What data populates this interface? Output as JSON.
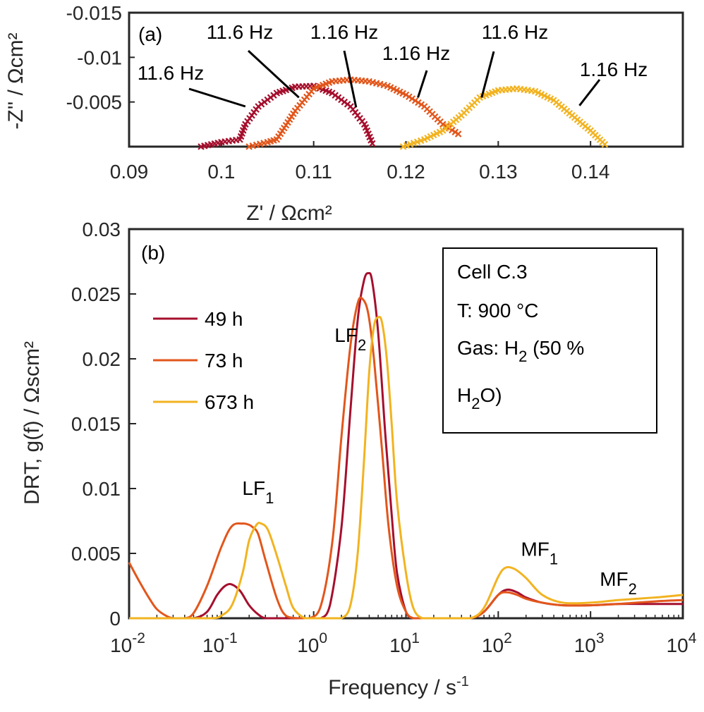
{
  "chart_data": [
    {
      "panel_label": "(a)",
      "type": "scatter",
      "marker": "x",
      "xlabel": "Z' / Ωcm²",
      "ylabel": "-Z'' / Ωcm²",
      "xlim": [
        0.09,
        0.15
      ],
      "ylim": [
        0,
        -0.015
      ],
      "x_ticks": [
        "0.09",
        "0.1",
        "0.11",
        "0.12",
        "0.13",
        "0.14"
      ],
      "y_ticks": [
        "-0.015",
        "-0.01",
        "-0.005"
      ],
      "series": [
        {
          "color": "#A50F2D",
          "x": [
            0.0978,
            0.1,
            0.102,
            0.1026,
            0.104,
            0.106,
            0.108,
            0.11,
            0.112,
            0.114,
            0.1155,
            0.1165
          ],
          "y": [
            0,
            -0.0005,
            -0.0008,
            -0.0025,
            -0.0045,
            -0.006,
            -0.0067,
            -0.0068,
            -0.006,
            -0.0045,
            -0.0025,
            0
          ]
        },
        {
          "color": "#E2561B",
          "x": [
            0.103,
            0.105,
            0.106,
            0.108,
            0.11,
            0.112,
            0.114,
            0.116,
            0.118,
            0.12,
            0.122,
            0.124,
            0.126
          ],
          "y": [
            0,
            -0.0005,
            -0.0008,
            -0.004,
            -0.0065,
            -0.0073,
            -0.0075,
            -0.0073,
            -0.0068,
            -0.0058,
            -0.0045,
            -0.0025,
            -0.0012
          ]
        },
        {
          "color": "#F2B320",
          "x": [
            0.1197,
            0.122,
            0.124,
            0.126,
            0.128,
            0.13,
            0.132,
            0.134,
            0.136,
            0.138,
            0.14,
            0.1418
          ],
          "y": [
            0,
            -0.0008,
            -0.0018,
            -0.0035,
            -0.0055,
            -0.0063,
            -0.0065,
            -0.0062,
            -0.0052,
            -0.0035,
            -0.0018,
            0
          ]
        }
      ],
      "annotations": [
        {
          "text": "11.6 Hz",
          "x": 0.1026,
          "y": -0.0045
        },
        {
          "text": "11.6 Hz",
          "x": 0.1084,
          "y": -0.0055
        },
        {
          "text": "1.16 Hz",
          "x": 0.1146,
          "y": -0.0044
        },
        {
          "text": "1.16 Hz",
          "x": 0.1213,
          "y": -0.0055
        },
        {
          "text": "11.6 Hz",
          "x": 0.1282,
          "y": -0.0055
        },
        {
          "text": "1.16 Hz",
          "x": 0.1388,
          "y": -0.0046
        }
      ]
    },
    {
      "panel_label": "(b)",
      "type": "line",
      "xlabel": "Frequency / s",
      "xlabel_sup": "-1",
      "ylabel": "DRT, g(f) / Ωscm²",
      "x_scale": "log",
      "xlim": [
        0.01,
        10000
      ],
      "ylim": [
        0,
        0.03
      ],
      "x_tick_values": [
        0.01,
        0.1,
        1,
        10,
        100,
        1000,
        10000
      ],
      "x_tick_labels": [
        {
          "base": "10",
          "exp": "-2"
        },
        {
          "base": "10",
          "exp": "-1"
        },
        {
          "base": "10",
          "exp": "0"
        },
        {
          "base": "10",
          "exp": "1"
        },
        {
          "base": "10",
          "exp": "2"
        },
        {
          "base": "10",
          "exp": "3"
        },
        {
          "base": "10",
          "exp": "4"
        }
      ],
      "y_tick_values": [
        0,
        0.005,
        0.01,
        0.015,
        0.02,
        0.025,
        0.03
      ],
      "y_tick_labels": [
        "0",
        "0.005",
        "0.01",
        "0.015",
        "0.02",
        "0.025",
        "0.03"
      ],
      "legend": {
        "placement": "upper-left",
        "entries": [
          {
            "label": "49 h",
            "color": "#A50F2D"
          },
          {
            "label": "73 h",
            "color": "#E2561B"
          },
          {
            "label": "673 h",
            "color": "#F2B320"
          }
        ]
      },
      "series": [
        {
          "name": "49 h",
          "color": "#A50F2D",
          "x": [
            0.01,
            0.02,
            0.03,
            0.05,
            0.07,
            0.09,
            0.11,
            0.13,
            0.16,
            0.2,
            0.25,
            0.3,
            0.4,
            0.5,
            0.7,
            1.0,
            1.2,
            1.5,
            2.0,
            2.5,
            3.0,
            3.5,
            3.9,
            4.3,
            5.0,
            6.0,
            7.0,
            8.0,
            10.0,
            12.0,
            15.0,
            20.0,
            30.0,
            50.0,
            70.0,
            100.0,
            125.0,
            160.0,
            200.0,
            300.0,
            500.0,
            1000.0,
            2000.0,
            5000.0,
            10000.0
          ],
          "y": [
            0,
            0,
            0,
            0,
            0.0005,
            0.0018,
            0.0025,
            0.0026,
            0.0021,
            0.001,
            0.0003,
            0,
            0,
            0,
            0,
            0,
            0,
            0.001,
            0.007,
            0.016,
            0.023,
            0.026,
            0.0266,
            0.026,
            0.022,
            0.014,
            0.008,
            0.0035,
            0.0005,
            0,
            0,
            0,
            0,
            0,
            0.0005,
            0.0018,
            0.0022,
            0.002,
            0.0016,
            0.0012,
            0.001,
            0.001,
            0.0011,
            0.0011,
            0.0011
          ]
        },
        {
          "name": "73 h",
          "color": "#E2561B",
          "x": [
            0.01,
            0.013,
            0.017,
            0.02,
            0.025,
            0.03,
            0.04,
            0.05,
            0.07,
            0.1,
            0.13,
            0.17,
            0.2,
            0.22,
            0.25,
            0.3,
            0.4,
            0.5,
            0.7,
            0.9,
            1.2,
            1.6,
            2.0,
            2.5,
            3.0,
            3.4,
            3.9,
            4.5,
            5.5,
            6.5,
            8.0,
            10.0,
            12.0,
            15.0,
            20.0,
            30.0,
            50.0,
            70.0,
            100.0,
            125.0,
            160.0,
            200.0,
            300.0,
            500.0,
            1000.0,
            2000.0,
            5000.0,
            10000.0
          ],
          "y": [
            0.0043,
            0.0028,
            0.0014,
            0.0007,
            0.0002,
            0,
            0,
            0.0004,
            0.0025,
            0.0055,
            0.0071,
            0.0073,
            0.0072,
            0.007,
            0.0065,
            0.0045,
            0.0015,
            0.0002,
            0,
            0,
            0.001,
            0.006,
            0.014,
            0.021,
            0.0243,
            0.0246,
            0.0235,
            0.02,
            0.013,
            0.007,
            0.0025,
            0.0005,
            0,
            0,
            0,
            0,
            0,
            0.0005,
            0.0018,
            0.002,
            0.0018,
            0.0015,
            0.0012,
            0.001,
            0.001,
            0.0011,
            0.0013,
            0.0014
          ]
        },
        {
          "name": "673 h",
          "color": "#F2B320",
          "x": [
            0.01,
            0.03,
            0.05,
            0.08,
            0.1,
            0.13,
            0.17,
            0.2,
            0.24,
            0.27,
            0.32,
            0.4,
            0.5,
            0.6,
            0.8,
            1.0,
            1.5,
            2.0,
            2.5,
            3.0,
            3.5,
            4.0,
            4.5,
            5.0,
            5.5,
            6.2,
            7.0,
            8.0,
            10.0,
            12.0,
            15.0,
            20.0,
            30.0,
            50.0,
            70.0,
            100.0,
            120.0,
            150.0,
            200.0,
            300.0,
            500.0,
            1000.0,
            2000.0,
            5000.0,
            10000.0
          ],
          "y": [
            0,
            0,
            0,
            0,
            0.0002,
            0.001,
            0.0035,
            0.006,
            0.0072,
            0.0073,
            0.0068,
            0.0048,
            0.0025,
            0.0008,
            0,
            0,
            0,
            0,
            0.001,
            0.005,
            0.012,
            0.019,
            0.0225,
            0.0232,
            0.0228,
            0.02,
            0.015,
            0.009,
            0.0035,
            0.0008,
            0,
            0,
            0,
            0,
            0.0008,
            0.0032,
            0.0039,
            0.0038,
            0.0031,
            0.0018,
            0.0012,
            0.0012,
            0.0014,
            0.0016,
            0.0018
          ]
        }
      ],
      "annotations": [
        {
          "base": "LF",
          "sub": "2",
          "x": 2.5,
          "y": 0.0213
        },
        {
          "base": "LF",
          "sub": "1",
          "x": 0.25,
          "y": 0.0095
        },
        {
          "base": "MF",
          "sub": "1",
          "x": 280,
          "y": 0.0048
        },
        {
          "base": "MF",
          "sub": "2",
          "x": 2000,
          "y": 0.0025
        }
      ],
      "info_box": {
        "line1": "Cell C.3",
        "line2": "T: 900 °C",
        "line3_base": "Gas: H",
        "line3_sub": "2",
        "line3_tail": " (50 %",
        "line4_base": "H",
        "line4_sub": "2",
        "line4_tail": "O)"
      }
    }
  ]
}
